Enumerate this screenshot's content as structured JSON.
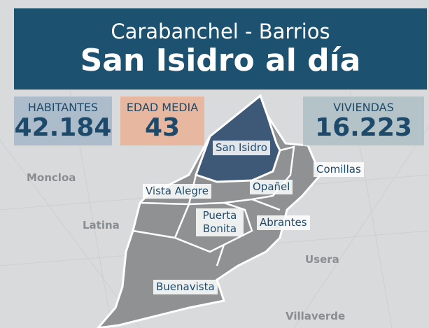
{
  "header": {
    "title": "Carabanchel - Barrios",
    "subtitle": "San Isidro al día"
  },
  "stats": [
    {
      "label": "HABITANTES",
      "value": "42.184"
    },
    {
      "label": "EDAD MEDIA",
      "value": "43"
    },
    {
      "label": "VIVIENDAS",
      "value": "16.223"
    }
  ],
  "neighborhoods": [
    "San Isidro",
    "Comillas",
    "Vista Alegre",
    "Opañel",
    "Puerta Bonita",
    "Abrantes",
    "Buenavista"
  ],
  "surrounding": [
    "Moncloa",
    "Latina",
    "Usera",
    "Villaverde"
  ]
}
